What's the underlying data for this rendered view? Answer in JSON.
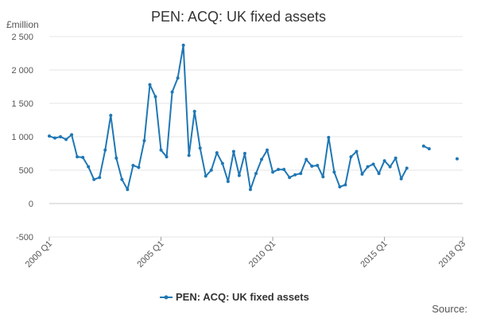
{
  "title": "PEN: ACQ: UK fixed assets",
  "source_label": "Source:",
  "chart_data": {
    "type": "line",
    "title": "PEN: ACQ: UK fixed assets",
    "ylabel": "£million",
    "xlabel": "",
    "ylim": [
      -500,
      2500
    ],
    "yticks": [
      -500,
      0,
      500,
      1000,
      1500,
      2000,
      2500
    ],
    "ytick_labels": [
      "-500",
      "0",
      "500",
      "1 000",
      "1 500",
      "2 000",
      "2 500"
    ],
    "xticks": [
      {
        "index": 0,
        "label": "2000 Q1"
      },
      {
        "index": 20,
        "label": "2005 Q1"
      },
      {
        "index": 40,
        "label": "2010 Q1"
      },
      {
        "index": 60,
        "label": "2015 Q1"
      },
      {
        "index": 74,
        "label": "2018 Q3"
      }
    ],
    "grid": true,
    "legend": "bottom-center",
    "color": "#1f77b4",
    "series": [
      {
        "name": "PEN: ACQ: UK fixed assets",
        "x": [
          "2000 Q1",
          "2000 Q2",
          "2000 Q3",
          "2000 Q4",
          "2001 Q1",
          "2001 Q2",
          "2001 Q3",
          "2001 Q4",
          "2002 Q1",
          "2002 Q2",
          "2002 Q3",
          "2002 Q4",
          "2003 Q1",
          "2003 Q2",
          "2003 Q3",
          "2003 Q4",
          "2004 Q1",
          "2004 Q2",
          "2004 Q3",
          "2004 Q4",
          "2005 Q1",
          "2005 Q2",
          "2005 Q3",
          "2005 Q4",
          "2006 Q1",
          "2006 Q2",
          "2006 Q3",
          "2006 Q4",
          "2007 Q1",
          "2007 Q2",
          "2007 Q3",
          "2007 Q4",
          "2008 Q1",
          "2008 Q2",
          "2008 Q3",
          "2008 Q4",
          "2009 Q1",
          "2009 Q2",
          "2009 Q3",
          "2009 Q4",
          "2010 Q1",
          "2010 Q2",
          "2010 Q3",
          "2010 Q4",
          "2011 Q1",
          "2011 Q2",
          "2011 Q3",
          "2011 Q4",
          "2012 Q1",
          "2012 Q2",
          "2012 Q3",
          "2012 Q4",
          "2013 Q1",
          "2013 Q2",
          "2013 Q3",
          "2013 Q4",
          "2014 Q1",
          "2014 Q2",
          "2014 Q3",
          "2014 Q4",
          "2015 Q1",
          "2015 Q2",
          "2015 Q3",
          "2015 Q4",
          "2016 Q1",
          "2016 Q2",
          "2016 Q3",
          "2016 Q4",
          "2017 Q1",
          "2017 Q2",
          "2017 Q3",
          "2017 Q4",
          "2018 Q1",
          "2018 Q2",
          "2018 Q3"
        ],
        "values": [
          1010,
          980,
          1000,
          960,
          1030,
          700,
          690,
          550,
          360,
          390,
          800,
          1320,
          680,
          360,
          210,
          570,
          540,
          940,
          1780,
          1600,
          800,
          700,
          1670,
          1880,
          2370,
          720,
          1380,
          830,
          410,
          500,
          760,
          600,
          330,
          780,
          420,
          750,
          210,
          450,
          660,
          800,
          470,
          510,
          510,
          390,
          430,
          450,
          660,
          560,
          570,
          400,
          990,
          470,
          250,
          280,
          700,
          780,
          440,
          550,
          590,
          450,
          640,
          550,
          680,
          370,
          530,
          null,
          null,
          860,
          820,
          null,
          null,
          null,
          null,
          670,
          null
        ]
      }
    ]
  }
}
